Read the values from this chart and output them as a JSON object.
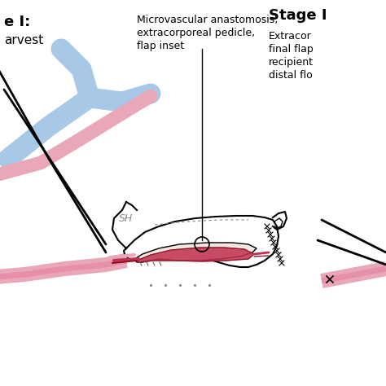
{
  "background_color": "#ffffff",
  "stage1_label": "e I:",
  "stage1_sublabel": "arvest",
  "stage2_label": "Stage I",
  "stage2_sublabel_lines": [
    "Extracor",
    "final flap",
    "recipient",
    "distal flo"
  ],
  "annotation_lines": [
    "Microvascular anastomosis,",
    "extracorporeal pedicle,",
    "flap inset"
  ],
  "vessel_blue_color": "#a8c8e8",
  "vessel_pink_color": "#e8a8b8",
  "vessel_red_color": "#c03050",
  "vessel_dark_red": "#8b1520",
  "vessel_pink_bright": "#e890a8"
}
